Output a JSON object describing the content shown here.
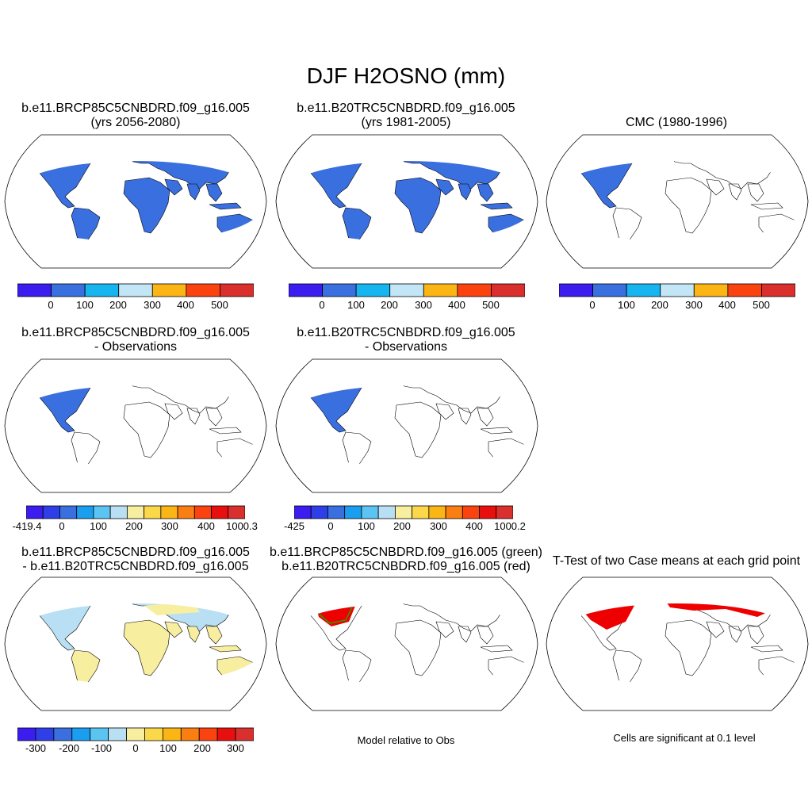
{
  "title": "DJF H2OSNO (mm)",
  "panels": {
    "p1": {
      "line1": "b.e11.BRCP85C5CNBDRD.f09_g16.005",
      "line2": "(yrs 2056-2080)"
    },
    "p2": {
      "line1": "b.e11.B20TRC5CNBDRD.f09_g16.005",
      "line2": "(yrs 1981-2005)"
    },
    "p3": {
      "line1": "CMC (1980-1996)"
    },
    "p4": {
      "line1": "b.e11.BRCP85C5CNBDRD.f09_g16.005",
      "line2": "- Observations"
    },
    "p5": {
      "line1": "b.e11.B20TRC5CNBDRD.f09_g16.005",
      "line2": "- Observations"
    },
    "p7": {
      "line1": "b.e11.BRCP85C5CNBDRD.f09_g16.005",
      "line2": "- b.e11.B20TRC5CNBDRD.f09_g16.005"
    },
    "p8": {
      "line1": "b.e11.BRCP85C5CNBDRD.f09_g16.005 (green)",
      "line2": "b.e11.B20TRC5CNBDRD.f09_g16.005 (red)",
      "note": "Model relative to Obs"
    },
    "p9": {
      "line1": "T-Test of two Case means at each grid point",
      "note": "Cells are significant at 0.1 level"
    }
  },
  "colorbars": {
    "abs": {
      "colors": [
        "#3b1df0",
        "#3a6fe0",
        "#17b5f0",
        "#c2e6f6",
        "#fbb616",
        "#fb4310",
        "#d9302e"
      ],
      "labels": [
        "0",
        "100",
        "200",
        "300",
        "400",
        "500"
      ]
    },
    "diff": {
      "colors": [
        "#3b1df0",
        "#2f3fe8",
        "#3a6fe0",
        "#1a9ef0",
        "#5cc4f2",
        "#b8dff4",
        "#f8eea0",
        "#fbd84a",
        "#fbb616",
        "#fb7e12",
        "#fb4310",
        "#e8100e",
        "#d9302e"
      ],
      "labels_p4": [
        "-419.4",
        "0",
        "100",
        "200",
        "300",
        "400",
        "1000.3"
      ],
      "labels_p5": [
        "-425",
        "0",
        "100",
        "200",
        "300",
        "400",
        "1000.2"
      ]
    },
    "p7": {
      "colors": [
        "#3b1df0",
        "#2f3fe8",
        "#3a6fe0",
        "#1a9ef0",
        "#5cc4f2",
        "#b8dff4",
        "#f8eea0",
        "#fbd84a",
        "#fbb616",
        "#fb7e12",
        "#fb4310",
        "#e8100e",
        "#d9302e"
      ],
      "labels": [
        "-300",
        "-200",
        "-100",
        "0",
        "100",
        "200",
        "300"
      ]
    }
  },
  "palette": {
    "land_blue": "#3a6fe0",
    "light_blue": "#17b5f0",
    "greenland_red": "#d9302e",
    "pale_yellow": "#f8eea0",
    "pale_blue": "#b8dff4",
    "sig_red": "#ee0000",
    "green": "#00c000",
    "outline": "#000000"
  }
}
